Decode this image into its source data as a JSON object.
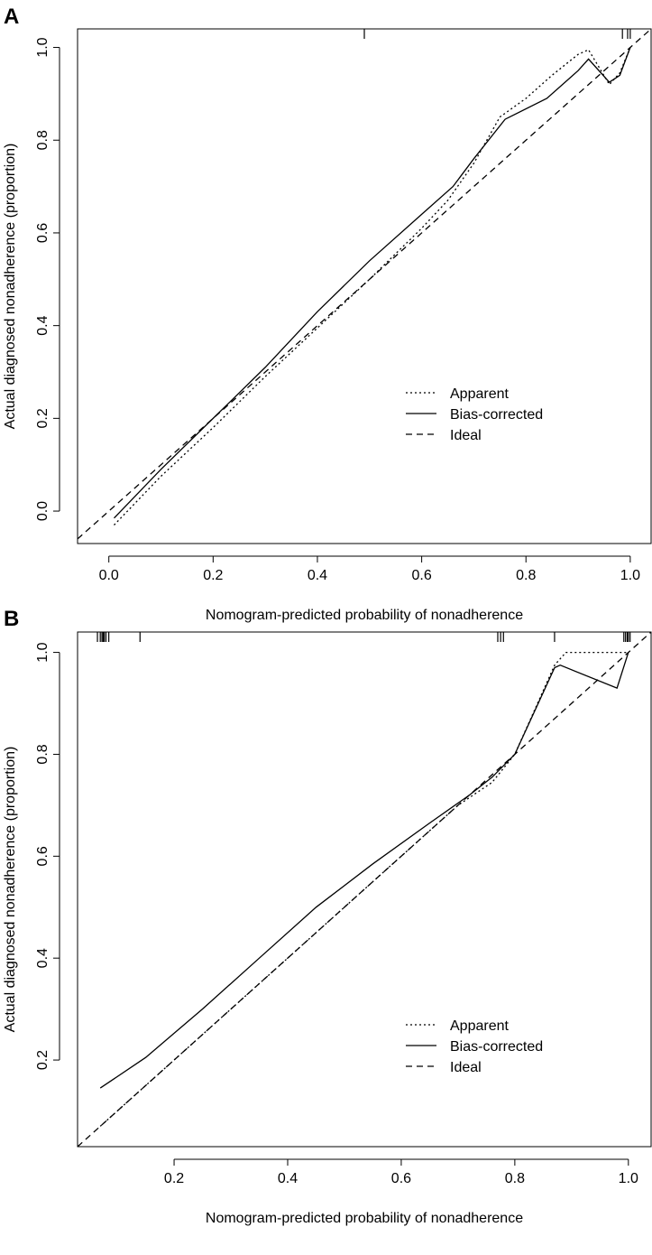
{
  "chart_data": [
    {
      "panel": "A",
      "type": "line",
      "xlabel": "Nomogram-predicted probability of nonadherence",
      "ylabel": "Actual diagnosed nonadherence (proportion)",
      "xlim": [
        -0.06,
        1.04
      ],
      "ylim": [
        -0.07,
        1.04
      ],
      "xticks": [
        0.0,
        0.2,
        0.4,
        0.6,
        0.8,
        1.0
      ],
      "xtick_labels": [
        "0.0",
        "0.2",
        "0.4",
        "0.6",
        "0.8",
        "1.0"
      ],
      "yticks": [
        0.0,
        0.2,
        0.4,
        0.6,
        0.8,
        1.0
      ],
      "ytick_labels": [
        "0.0",
        "0.2",
        "0.4",
        "0.6",
        "0.8",
        "1.0"
      ],
      "legend": {
        "position": "bottom-right",
        "entries": [
          "Apparent",
          "Bias-corrected",
          "Ideal"
        ]
      },
      "series": [
        {
          "name": "Apparent",
          "style": "dotted",
          "x": [
            0.01,
            0.1,
            0.2,
            0.3,
            0.4,
            0.5,
            0.6,
            0.65,
            0.7,
            0.75,
            0.8,
            0.85,
            0.9,
            0.92,
            0.96,
            0.98,
            1.0
          ],
          "y": [
            -0.03,
            0.075,
            0.18,
            0.29,
            0.395,
            0.5,
            0.61,
            0.67,
            0.75,
            0.85,
            0.89,
            0.94,
            0.985,
            0.995,
            0.92,
            0.945,
            1.0
          ]
        },
        {
          "name": "Bias-corrected",
          "style": "solid",
          "x": [
            0.01,
            0.1,
            0.2,
            0.3,
            0.4,
            0.5,
            0.6,
            0.66,
            0.7,
            0.76,
            0.84,
            0.9,
            0.92,
            0.96,
            0.98,
            1.0
          ],
          "y": [
            -0.015,
            0.09,
            0.2,
            0.31,
            0.43,
            0.54,
            0.64,
            0.7,
            0.76,
            0.845,
            0.89,
            0.95,
            0.975,
            0.925,
            0.94,
            1.0
          ]
        },
        {
          "name": "Ideal",
          "style": "dashed",
          "x": [
            -0.06,
            1.04
          ],
          "y": [
            -0.06,
            1.04
          ]
        }
      ],
      "rug": [
        0.49,
        0.985,
        0.995,
        1.0
      ]
    },
    {
      "panel": "B",
      "type": "line",
      "xlabel": "Nomogram-predicted probability of nonadherence",
      "ylabel": "Actual diagnosed nonadherence (proportion)",
      "xlim": [
        0.03,
        1.04
      ],
      "ylim": [
        0.03,
        1.04
      ],
      "xticks": [
        0.2,
        0.4,
        0.6,
        0.8,
        1.0
      ],
      "xtick_labels": [
        "0.2",
        "0.4",
        "0.6",
        "0.8",
        "1.0"
      ],
      "yticks": [
        0.2,
        0.4,
        0.6,
        0.8,
        1.0
      ],
      "ytick_labels": [
        "0.2",
        "0.4",
        "0.6",
        "0.8",
        "1.0"
      ],
      "legend": {
        "position": "bottom-right",
        "entries": [
          "Apparent",
          "Bias-corrected",
          "Ideal"
        ]
      },
      "series": [
        {
          "name": "Apparent",
          "style": "dotted",
          "x": [
            0.07,
            0.2,
            0.4,
            0.6,
            0.7,
            0.76,
            0.8,
            0.87,
            0.89,
            0.95,
            1.0
          ],
          "y": [
            0.07,
            0.2,
            0.4,
            0.6,
            0.7,
            0.745,
            0.8,
            0.975,
            1.0,
            1.0,
            1.0
          ]
        },
        {
          "name": "Bias-corrected",
          "style": "solid",
          "x": [
            0.07,
            0.15,
            0.25,
            0.35,
            0.45,
            0.55,
            0.65,
            0.72,
            0.76,
            0.8,
            0.87,
            0.88,
            0.98,
            1.0
          ],
          "y": [
            0.145,
            0.205,
            0.3,
            0.4,
            0.5,
            0.585,
            0.665,
            0.72,
            0.755,
            0.8,
            0.97,
            0.975,
            0.93,
            1.0
          ]
        },
        {
          "name": "Ideal",
          "style": "dashed",
          "x": [
            0.03,
            1.04
          ],
          "y": [
            0.03,
            1.04
          ]
        }
      ],
      "rug": [
        0.065,
        0.07,
        0.073,
        0.075,
        0.077,
        0.08,
        0.085,
        0.14,
        0.77,
        0.775,
        0.78,
        0.87,
        0.992,
        0.995,
        0.998,
        1.0,
        1.003
      ]
    }
  ]
}
